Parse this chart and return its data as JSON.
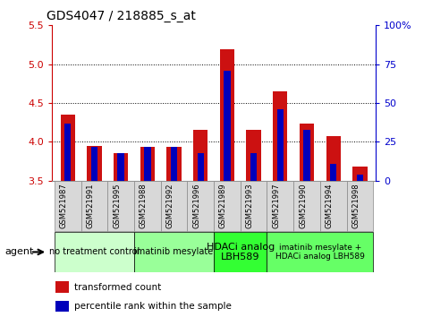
{
  "title": "GDS4047 / 218885_s_at",
  "samples": [
    "GSM521987",
    "GSM521991",
    "GSM521995",
    "GSM521988",
    "GSM521992",
    "GSM521996",
    "GSM521989",
    "GSM521993",
    "GSM521997",
    "GSM521990",
    "GSM521994",
    "GSM521998"
  ],
  "transformed_count": [
    4.35,
    3.95,
    3.86,
    3.93,
    3.93,
    4.16,
    5.19,
    4.16,
    4.65,
    4.24,
    4.07,
    3.68
  ],
  "percentile_rank_pct": [
    37,
    22,
    18,
    22,
    22,
    18,
    71,
    18,
    46,
    33,
    11,
    4
  ],
  "ylim_left": [
    3.5,
    5.5
  ],
  "ylim_right": [
    0,
    100
  ],
  "yticks_left": [
    3.5,
    4.0,
    4.5,
    5.0,
    5.5
  ],
  "yticks_right": [
    0,
    25,
    50,
    75,
    100
  ],
  "ytick_labels_right": [
    "0",
    "25",
    "50",
    "75",
    "100%"
  ],
  "groups": [
    {
      "label": "no treatment control",
      "indices": [
        0,
        1,
        2
      ],
      "color": "#ccffcc",
      "text_size": 7
    },
    {
      "label": "imatinib mesylate",
      "indices": [
        3,
        4,
        5
      ],
      "color": "#99ff99",
      "text_size": 7
    },
    {
      "label": "HDACi analog\nLBH589",
      "indices": [
        6,
        7
      ],
      "color": "#33ff33",
      "text_size": 8
    },
    {
      "label": "imatinib mesylate +\nHDACi analog LBH589",
      "indices": [
        8,
        9,
        10,
        11
      ],
      "color": "#66ff66",
      "text_size": 6.5
    }
  ],
  "bar_width": 0.55,
  "blue_bar_width": 0.25,
  "bar_color_red": "#cc1111",
  "bar_color_blue": "#0000bb",
  "background_color": "#ffffff",
  "left_tick_color": "#cc0000",
  "right_tick_color": "#0000cc",
  "base_value": 3.5,
  "cell_color": "#d8d8d8",
  "cell_edge_color": "#888888"
}
